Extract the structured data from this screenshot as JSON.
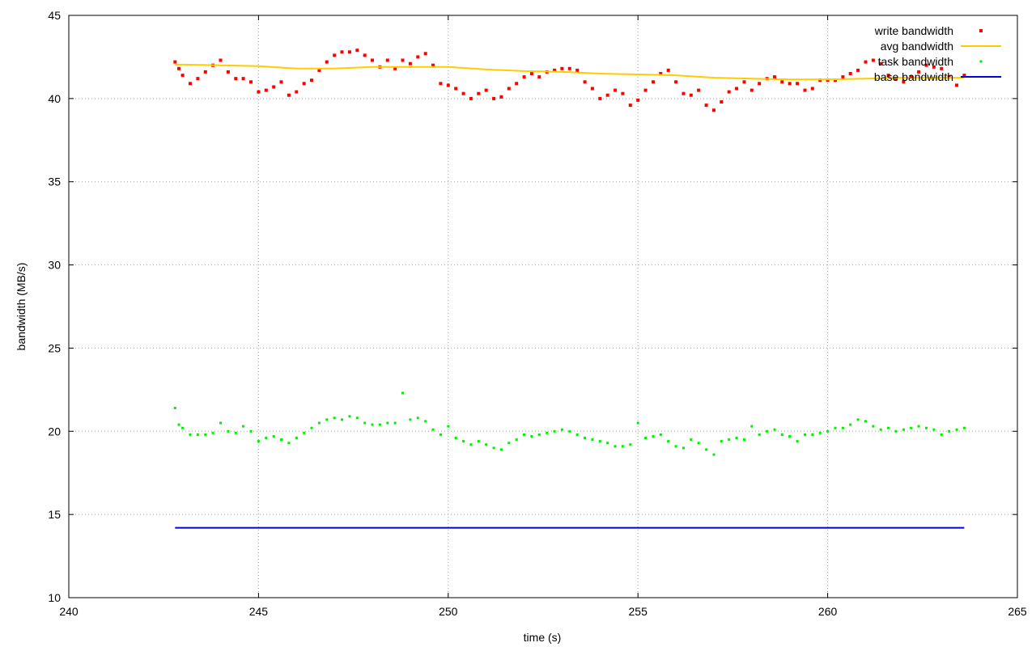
{
  "chart_data": {
    "type": "scatter",
    "title": "",
    "xlabel": "time (s)",
    "ylabel": "bandwidth (MB/s)",
    "xlim": [
      240,
      265
    ],
    "ylim": [
      10,
      45
    ],
    "xticks": [
      240,
      245,
      250,
      255,
      260,
      265
    ],
    "yticks": [
      10,
      15,
      20,
      25,
      30,
      35,
      40,
      45
    ],
    "grid": true,
    "legend_position": "top-right",
    "series": [
      {
        "name": "write bandwidth",
        "style": "points",
        "color": "#ff0000",
        "x": [
          242.8,
          242.9,
          243.0,
          243.2,
          243.4,
          243.6,
          243.8,
          244.0,
          244.2,
          244.4,
          244.6,
          244.8,
          245.0,
          245.2,
          245.4,
          245.6,
          245.8,
          246.0,
          246.2,
          246.4,
          246.6,
          246.8,
          247.0,
          247.2,
          247.4,
          247.6,
          247.8,
          248.0,
          248.2,
          248.4,
          248.6,
          248.8,
          249.0,
          249.2,
          249.4,
          249.6,
          249.8,
          250.0,
          250.2,
          250.4,
          250.6,
          250.8,
          251.0,
          251.2,
          251.4,
          251.6,
          251.8,
          252.0,
          252.2,
          252.4,
          252.6,
          252.8,
          253.0,
          253.2,
          253.4,
          253.6,
          253.8,
          254.0,
          254.2,
          254.4,
          254.6,
          254.8,
          255.0,
          255.2,
          255.4,
          255.6,
          255.8,
          256.0,
          256.2,
          256.4,
          256.6,
          256.8,
          257.0,
          257.2,
          257.4,
          257.6,
          257.8,
          258.0,
          258.2,
          258.4,
          258.6,
          258.8,
          259.0,
          259.2,
          259.4,
          259.6,
          259.8,
          260.0,
          260.2,
          260.4,
          260.6,
          260.8,
          261.0,
          261.2,
          261.4,
          261.6,
          261.8,
          262.0,
          262.2,
          262.4,
          262.6,
          262.8,
          263.0,
          263.2,
          263.4,
          263.6
        ],
        "y": [
          42.2,
          41.8,
          41.4,
          40.9,
          41.2,
          41.6,
          42.0,
          42.3,
          41.6,
          41.2,
          41.2,
          41.0,
          40.4,
          40.5,
          40.7,
          41.0,
          40.2,
          40.4,
          40.9,
          41.1,
          41.7,
          42.2,
          42.6,
          42.8,
          42.8,
          42.9,
          42.6,
          42.3,
          41.9,
          42.3,
          41.8,
          42.3,
          42.1,
          42.5,
          42.7,
          42.0,
          40.9,
          40.8,
          40.6,
          40.3,
          40.0,
          40.3,
          40.5,
          40.0,
          40.1,
          40.6,
          40.9,
          41.3,
          41.5,
          41.3,
          41.6,
          41.7,
          41.8,
          41.8,
          41.7,
          41.0,
          40.6,
          40.0,
          40.2,
          40.5,
          40.3,
          39.6,
          39.9,
          40.5,
          41.0,
          41.5,
          41.7,
          41.0,
          40.3,
          40.2,
          40.5,
          39.6,
          39.3,
          39.8,
          40.4,
          40.6,
          41.0,
          40.5,
          40.9,
          41.2,
          41.3,
          41.0,
          40.9,
          40.9,
          40.5,
          40.6,
          41.1,
          41.1,
          41.1,
          41.3,
          41.5,
          41.7,
          42.2,
          42.3,
          42.1,
          41.4,
          41.2,
          41.0,
          41.3,
          41.6,
          42.0,
          41.9,
          41.8,
          41.3,
          40.8,
          41.4
        ]
      },
      {
        "name": "avg bandwidth",
        "style": "line",
        "color": "#ffcc00",
        "x": [
          242.8,
          244.0,
          245.0,
          246.0,
          247.0,
          248.0,
          249.0,
          250.0,
          251.0,
          252.0,
          253.0,
          254.0,
          255.0,
          256.0,
          257.0,
          258.0,
          259.0,
          260.0,
          261.0,
          262.0,
          263.0,
          263.6
        ],
        "y": [
          42.05,
          42.0,
          41.95,
          41.8,
          41.8,
          41.9,
          41.9,
          41.9,
          41.75,
          41.65,
          41.6,
          41.5,
          41.45,
          41.4,
          41.25,
          41.2,
          41.15,
          41.15,
          41.2,
          41.25,
          41.25,
          41.25
        ]
      },
      {
        "name": "task bandwidth",
        "style": "dots",
        "color": "#00ee00",
        "x": [
          242.8,
          242.9,
          243.0,
          243.2,
          243.4,
          243.6,
          243.8,
          244.0,
          244.2,
          244.4,
          244.6,
          244.8,
          245.0,
          245.2,
          245.4,
          245.6,
          245.8,
          246.0,
          246.2,
          246.4,
          246.6,
          246.8,
          247.0,
          247.2,
          247.4,
          247.6,
          247.8,
          248.0,
          248.2,
          248.4,
          248.6,
          248.8,
          249.0,
          249.2,
          249.4,
          249.6,
          249.8,
          250.0,
          250.2,
          250.4,
          250.6,
          250.8,
          251.0,
          251.2,
          251.4,
          251.6,
          251.8,
          252.0,
          252.2,
          252.4,
          252.6,
          252.8,
          253.0,
          253.2,
          253.4,
          253.6,
          253.8,
          254.0,
          254.2,
          254.4,
          254.6,
          254.8,
          255.0,
          255.2,
          255.4,
          255.6,
          255.8,
          256.0,
          256.2,
          256.4,
          256.6,
          256.8,
          257.0,
          257.2,
          257.4,
          257.6,
          257.8,
          258.0,
          258.2,
          258.4,
          258.6,
          258.8,
          259.0,
          259.2,
          259.4,
          259.6,
          259.8,
          260.0,
          260.2,
          260.4,
          260.6,
          260.8,
          261.0,
          261.2,
          261.4,
          261.6,
          261.8,
          262.0,
          262.2,
          262.4,
          262.6,
          262.8,
          263.0,
          263.2,
          263.4,
          263.6
        ],
        "y": [
          21.4,
          20.4,
          20.2,
          19.8,
          19.8,
          19.8,
          19.9,
          20.5,
          20.0,
          19.9,
          20.3,
          20.0,
          19.4,
          19.6,
          19.7,
          19.5,
          19.3,
          19.6,
          19.9,
          20.2,
          20.5,
          20.7,
          20.8,
          20.7,
          20.9,
          20.8,
          20.5,
          20.4,
          20.4,
          20.5,
          20.5,
          22.3,
          20.7,
          20.8,
          20.6,
          20.1,
          19.8,
          20.3,
          19.6,
          19.4,
          19.2,
          19.4,
          19.2,
          19.0,
          18.9,
          19.3,
          19.5,
          19.8,
          19.7,
          19.8,
          19.9,
          20.0,
          20.1,
          20.0,
          19.8,
          19.6,
          19.5,
          19.4,
          19.3,
          19.1,
          19.1,
          19.2,
          20.5,
          19.6,
          19.7,
          19.8,
          19.4,
          19.1,
          19.0,
          19.5,
          19.3,
          18.9,
          18.6,
          19.4,
          19.5,
          19.6,
          19.5,
          20.3,
          19.8,
          20.0,
          20.1,
          19.8,
          19.7,
          19.4,
          19.8,
          19.8,
          19.9,
          20.0,
          20.2,
          20.2,
          20.4,
          20.7,
          20.6,
          20.3,
          20.1,
          20.2,
          20.0,
          20.1,
          20.2,
          20.3,
          20.2,
          20.1,
          19.8,
          20.0,
          20.1,
          20.2
        ]
      },
      {
        "name": "base bandwidth",
        "style": "line",
        "color": "#0000dd",
        "x": [
          242.8,
          263.6
        ],
        "y": [
          14.2,
          14.2
        ]
      }
    ]
  }
}
